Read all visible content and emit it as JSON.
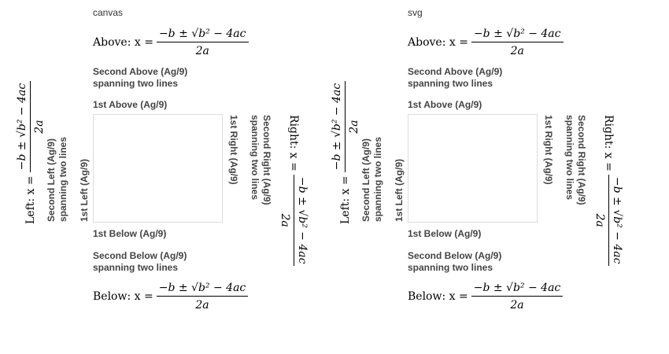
{
  "panels": [
    {
      "header": "canvas",
      "above_math_lhs": "Above: x =",
      "second_above": "Second Above (Ag/9)\nspanning two lines",
      "first_above": "1st Above (Ag/9)",
      "first_below": "1st Below (Ag/9)",
      "second_below": "Second Below (Ag/9)\nspanning two lines",
      "below_math_lhs": "Below: x =",
      "left_math_lhs": "Left: x =",
      "second_left": "Second Left (Ag/9)\nspanning two lines",
      "first_left": "1st Left (Ag/9)",
      "first_right": "1st Right (Ag/9)",
      "second_right": "Second Right (Ag/9)\nspanning two lines",
      "right_math_lhs": "Right: x =",
      "formula_num": "−b ± √b² − 4ac",
      "formula_den": "2a"
    },
    {
      "header": "svg",
      "above_math_lhs": "Above: x =",
      "second_above": "Second Above (Ag/9)\nspanning two lines",
      "first_above": "1st Above (Ag/9)",
      "first_below": "1st Below (Ag/9)",
      "second_below": "Second Below (Ag/9)\nspanning two lines",
      "below_math_lhs": "Below: x =",
      "left_math_lhs": "Left: x =",
      "second_left": "Second Left (Ag/9)\nspanning two lines",
      "first_left": "1st Left (Ag/9)",
      "first_right": "1st Right (Ag/9)",
      "second_right": "Second Right (Ag/9)\nspanning two lines",
      "right_math_lhs": "Right: x =",
      "formula_num": "−b ± √b² − 4ac",
      "formula_den": "2a"
    }
  ]
}
